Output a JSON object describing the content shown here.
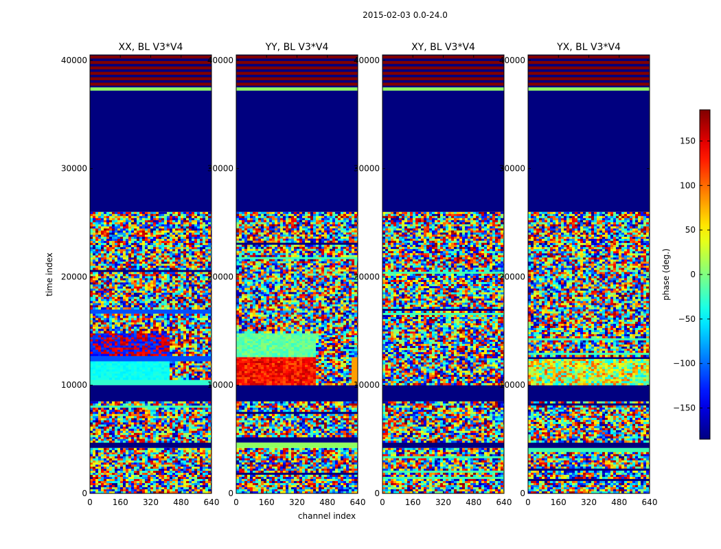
{
  "figure": {
    "suptitle": "2015-02-03 0.0-24.0",
    "xlabel": "channel index",
    "ylabel": "time index"
  },
  "colors": {
    "deep_blue": "#00007f",
    "blue": "#0000ff",
    "cyan": "#00ffff",
    "green_cyan": "#2fffc8",
    "yellow": "#ffff00",
    "orange": "#ff9a00",
    "red": "#ff0000",
    "dark_red": "#7f0000"
  },
  "chart_data": [
    {
      "type": "heatmap",
      "title": "XX, BL V3*V4",
      "xlabel": "channel index",
      "ylabel": "time index",
      "xlim": [
        0,
        640
      ],
      "ylim": [
        0,
        40500
      ],
      "xticks": [
        "0",
        "160",
        "320",
        "480",
        "640"
      ],
      "yticks": [
        "0",
        "10000",
        "20000",
        "30000",
        "40000"
      ],
      "bands": [
        {
          "t0": 0,
          "t1": 3800,
          "kind": "noise"
        },
        {
          "t0": 3800,
          "t1": 4200,
          "kind": "noise"
        },
        {
          "t0": 4200,
          "t1": 4700,
          "kind": "flagged"
        },
        {
          "t0": 4700,
          "t1": 5200,
          "kind": "noise"
        },
        {
          "t0": 5200,
          "t1": 8500,
          "kind": "noise"
        },
        {
          "t0": 8500,
          "t1": 10000,
          "kind": "flagged"
        },
        {
          "t0": 10000,
          "t1": 10500,
          "kind": "solid_cyan"
        },
        {
          "t0": 10500,
          "t1": 12200,
          "kind": "split_cyan"
        },
        {
          "t0": 12200,
          "t1": 12700,
          "kind": "solid_blue"
        },
        {
          "t0": 12700,
          "t1": 14800,
          "kind": "split_redblue"
        },
        {
          "t0": 14800,
          "t1": 16600,
          "kind": "noise"
        },
        {
          "t0": 16600,
          "t1": 17000,
          "kind": "solid_blue"
        },
        {
          "t0": 17000,
          "t1": 26000,
          "kind": "noise"
        },
        {
          "t0": 26000,
          "t1": 37200,
          "kind": "flagged"
        },
        {
          "t0": 37200,
          "t1": 37500,
          "kind": "solid_green"
        },
        {
          "t0": 37500,
          "t1": 40500,
          "kind": "red_stripes"
        }
      ]
    },
    {
      "type": "heatmap",
      "title": "YY, BL V3*V4",
      "xlabel": "channel index",
      "ylabel": "",
      "xlim": [
        0,
        640
      ],
      "ylim": [
        0,
        40500
      ],
      "xticks": [
        "0",
        "160",
        "320",
        "480",
        "640"
      ],
      "yticks": [
        "0",
        "10000",
        "20000",
        "30000",
        "40000"
      ],
      "bands": [
        {
          "t0": 0,
          "t1": 4200,
          "kind": "noise"
        },
        {
          "t0": 4200,
          "t1": 4700,
          "kind": "solid_green"
        },
        {
          "t0": 4700,
          "t1": 5200,
          "kind": "flagged"
        },
        {
          "t0": 5200,
          "t1": 8500,
          "kind": "noise"
        },
        {
          "t0": 8500,
          "t1": 10000,
          "kind": "flagged"
        },
        {
          "t0": 10000,
          "t1": 12600,
          "kind": "split_red"
        },
        {
          "t0": 12600,
          "t1": 14800,
          "kind": "split_green"
        },
        {
          "t0": 14800,
          "t1": 26000,
          "kind": "noise"
        },
        {
          "t0": 26000,
          "t1": 37200,
          "kind": "flagged"
        },
        {
          "t0": 37200,
          "t1": 37500,
          "kind": "solid_green"
        },
        {
          "t0": 37500,
          "t1": 40500,
          "kind": "red_stripes"
        }
      ]
    },
    {
      "type": "heatmap",
      "title": "XY, BL V3*V4",
      "xlabel": "channel index",
      "ylabel": "",
      "xlim": [
        0,
        640
      ],
      "ylim": [
        0,
        40500
      ],
      "xticks": [
        "0",
        "160",
        "320",
        "480",
        "640"
      ],
      "yticks": [
        "0",
        "10000",
        "20000",
        "30000",
        "40000"
      ],
      "bands": [
        {
          "t0": 0,
          "t1": 4200,
          "kind": "noise"
        },
        {
          "t0": 4200,
          "t1": 4700,
          "kind": "flagged"
        },
        {
          "t0": 4700,
          "t1": 5200,
          "kind": "noise"
        },
        {
          "t0": 5200,
          "t1": 8500,
          "kind": "noise"
        },
        {
          "t0": 8500,
          "t1": 10000,
          "kind": "flagged"
        },
        {
          "t0": 10000,
          "t1": 26000,
          "kind": "noise"
        },
        {
          "t0": 26000,
          "t1": 37200,
          "kind": "flagged"
        },
        {
          "t0": 37200,
          "t1": 37500,
          "kind": "solid_green"
        },
        {
          "t0": 37500,
          "t1": 40500,
          "kind": "red_stripes"
        }
      ]
    },
    {
      "type": "heatmap",
      "title": "YX, BL V3*V4",
      "xlabel": "channel index",
      "ylabel": "",
      "xlim": [
        0,
        640
      ],
      "ylim": [
        0,
        40500
      ],
      "xticks": [
        "0",
        "160",
        "320",
        "480",
        "640"
      ],
      "yticks": [
        "0",
        "10000",
        "20000",
        "30000",
        "40000"
      ],
      "bands": [
        {
          "t0": 0,
          "t1": 4200,
          "kind": "noise"
        },
        {
          "t0": 4200,
          "t1": 4700,
          "kind": "flagged"
        },
        {
          "t0": 4700,
          "t1": 8500,
          "kind": "noise"
        },
        {
          "t0": 8500,
          "t1": 10000,
          "kind": "flagged"
        },
        {
          "t0": 10000,
          "t1": 12600,
          "kind": "noise_warm"
        },
        {
          "t0": 12600,
          "t1": 26000,
          "kind": "noise"
        },
        {
          "t0": 26000,
          "t1": 37200,
          "kind": "flagged"
        },
        {
          "t0": 37200,
          "t1": 37500,
          "kind": "solid_green"
        },
        {
          "t0": 37500,
          "t1": 40500,
          "kind": "red_stripes"
        }
      ]
    }
  ],
  "colorbar": {
    "label": "phase (deg.)",
    "range": [
      -185,
      185
    ],
    "ticks": [
      "−150",
      "−100",
      "−50",
      "0",
      "50",
      "100",
      "150"
    ],
    "tick_values": [
      -150,
      -100,
      -50,
      0,
      50,
      100,
      150
    ]
  }
}
